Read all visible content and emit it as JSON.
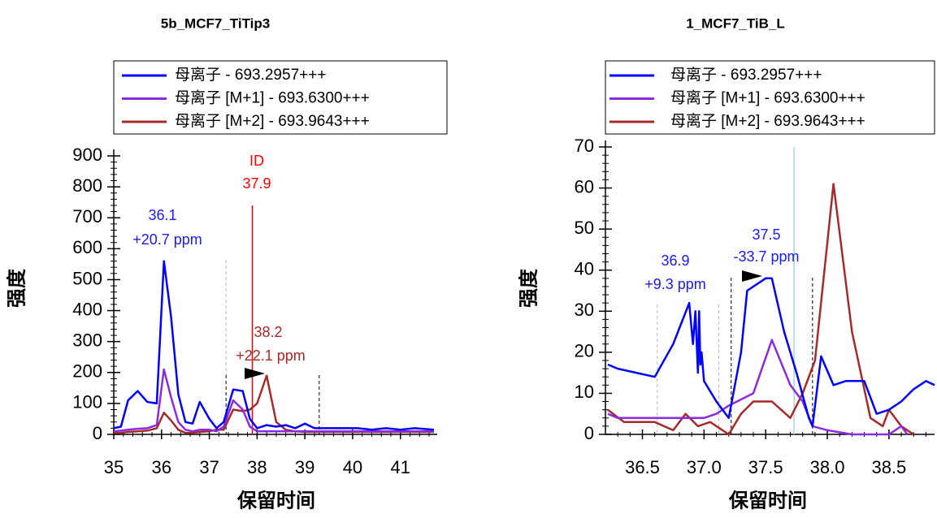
{
  "chart_data": [
    {
      "type": "line",
      "title": "5b_MCF7_TiTip3",
      "x_label": "保留时间",
      "y_label": "强度",
      "xlim": [
        35,
        41.77
      ],
      "ylim": [
        0,
        900
      ],
      "xticks": [
        35,
        36,
        37,
        38,
        39,
        40,
        41
      ],
      "yticks": [
        0,
        100,
        200,
        300,
        400,
        500,
        600,
        700,
        800,
        900
      ],
      "annotations": [
        {
          "text": "36.1",
          "color": "#1a1aff"
        },
        {
          "text": "+20.7 ppm",
          "color": "#1a1aff"
        },
        {
          "text": "ID",
          "color": "#ff0000"
        },
        {
          "text": "37.9",
          "color": "#ff0000"
        },
        {
          "text": "38.2",
          "color": "#a52a2a"
        },
        {
          "text": "+22.1 ppm",
          "color": "#a52a2a"
        }
      ],
      "series": [
        {
          "name": "母离子 - 693.2957+++",
          "color": "#0000ff",
          "x": [
            35,
            35.15,
            35.3,
            35.5,
            35.7,
            35.9,
            36.05,
            36.2,
            36.35,
            36.5,
            36.65,
            36.8,
            37.0,
            37.15,
            37.3,
            37.5,
            37.7,
            37.85,
            38.0,
            38.2,
            38.4,
            38.6,
            38.8,
            39.0,
            39.2,
            39.5,
            39.8,
            40.1,
            40.4,
            40.7,
            41.0,
            41.3,
            41.7
          ],
          "values": [
            20,
            25,
            110,
            140,
            105,
            100,
            560,
            380,
            130,
            40,
            35,
            105,
            50,
            20,
            40,
            145,
            140,
            50,
            20,
            30,
            25,
            30,
            20,
            35,
            20,
            20,
            20,
            20,
            15,
            20,
            15,
            20,
            15
          ]
        },
        {
          "name": "母离子 [M+1] - 693.6300+++",
          "color": "#8a2be2",
          "x": [
            35,
            35.15,
            35.3,
            35.5,
            35.7,
            35.9,
            36.05,
            36.2,
            36.35,
            36.5,
            36.65,
            36.8,
            37.0,
            37.15,
            37.3,
            37.5,
            37.7,
            37.85,
            38.0,
            38.2,
            38.4,
            38.6,
            38.8,
            39.0,
            39.2,
            39.5,
            39.8,
            40.1,
            40.4,
            40.7,
            41.0,
            41.3,
            41.7
          ],
          "values": [
            10,
            12,
            15,
            18,
            20,
            30,
            210,
            120,
            40,
            15,
            10,
            15,
            15,
            10,
            25,
            110,
            80,
            25,
            10,
            10,
            10,
            10,
            10,
            10,
            10,
            10,
            10,
            10,
            10,
            10,
            10,
            10,
            10
          ]
        },
        {
          "name": "母离子 [M+2] - 693.9643+++",
          "color": "#a52a2a",
          "x": [
            35,
            35.15,
            35.3,
            35.5,
            35.7,
            35.9,
            36.05,
            36.2,
            36.35,
            36.5,
            36.65,
            36.8,
            37.0,
            37.15,
            37.3,
            37.5,
            37.7,
            37.85,
            38.0,
            38.2,
            38.4,
            38.6,
            38.8,
            39.0,
            39.2,
            39.5,
            39.8,
            40.1,
            40.4,
            40.7,
            41.0,
            41.3,
            41.7
          ],
          "values": [
            5,
            5,
            8,
            10,
            12,
            20,
            70,
            45,
            15,
            5,
            5,
            8,
            10,
            15,
            15,
            80,
            75,
            80,
            100,
            190,
            40,
            15,
            10,
            8,
            8,
            8,
            8,
            8,
            8,
            8,
            8,
            8,
            8
          ]
        }
      ]
    },
    {
      "type": "line",
      "title": "1_MCF7_TiB_L",
      "x_label": "保留时间",
      "y_label": "强度",
      "xlim": [
        36.2,
        38.87
      ],
      "ylim": [
        0,
        70
      ],
      "xticks": [
        36.5,
        {
          "value": 37,
          "label": "37.0"
        },
        37.5,
        {
          "value": 38,
          "label": "38.0"
        },
        38.5
      ],
      "yticks": [
        0,
        10,
        20,
        30,
        40,
        50,
        60,
        70
      ],
      "annotations": [
        {
          "text": "36.9",
          "color": "#1a1aff"
        },
        {
          "text": "+9.3 ppm",
          "color": "#1a1aff"
        },
        {
          "text": "37.5",
          "color": "#1a1aff"
        },
        {
          "text": "-33.7 ppm",
          "color": "#1a1aff"
        }
      ],
      "series": [
        {
          "name": "母离子 - 693.2957+++",
          "color": "#0000ff",
          "x": [
            36.22,
            36.3,
            36.45,
            36.6,
            36.75,
            36.88,
            36.91,
            36.93,
            36.95,
            36.96,
            36.97,
            36.98,
            37.0,
            37.1,
            37.2,
            37.3,
            37.35,
            37.5,
            37.55,
            37.65,
            37.75,
            37.85,
            37.88,
            37.95,
            38.05,
            38.15,
            38.3,
            38.4,
            38.5,
            38.6,
            38.7,
            38.8,
            38.87
          ],
          "values": [
            17,
            16,
            15,
            14,
            22,
            32,
            22,
            30,
            15,
            30,
            17,
            20,
            13,
            8,
            4,
            20,
            35,
            38,
            38,
            25,
            15,
            4,
            2,
            19,
            12,
            13,
            13,
            5,
            6,
            8,
            11,
            13,
            12
          ]
        },
        {
          "name": "母离子 [M+1] - 693.6300+++",
          "color": "#8a2be2",
          "x": [
            36.22,
            36.3,
            36.6,
            36.85,
            36.95,
            37.0,
            37.1,
            37.2,
            37.4,
            37.55,
            37.7,
            37.8,
            37.88,
            38.0,
            38.2,
            38.5,
            38.6,
            38.65
          ],
          "values": [
            5,
            4,
            4,
            4,
            4,
            4,
            5,
            7,
            10,
            23,
            12,
            8,
            2,
            1,
            0,
            0,
            2,
            0
          ]
        },
        {
          "name": "母离子 [M+2] - 693.9643+++",
          "color": "#a52a2a",
          "x": [
            36.22,
            36.35,
            36.6,
            36.75,
            36.85,
            36.95,
            37.05,
            37.2,
            37.3,
            37.4,
            37.55,
            37.7,
            37.8,
            37.9,
            38.05,
            38.2,
            38.35,
            38.45,
            38.5,
            38.6,
            38.7
          ],
          "values": [
            6,
            3,
            3,
            1,
            5,
            2,
            3,
            0,
            5,
            8,
            8,
            4,
            10,
            18,
            61,
            25,
            4,
            2,
            6,
            2,
            0
          ]
        }
      ]
    }
  ]
}
